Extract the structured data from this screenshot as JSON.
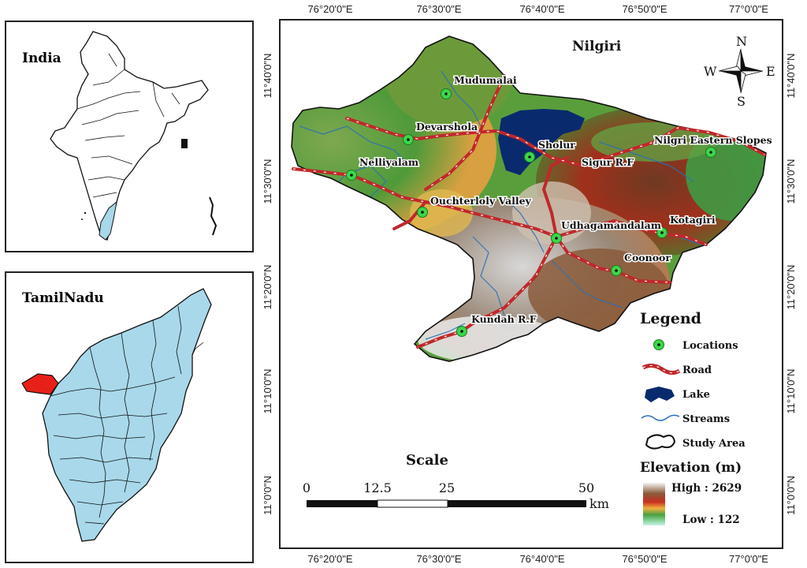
{
  "india_panel": {
    "title": "India"
  },
  "tamilnadu_panel": {
    "title": "TamilNadu"
  },
  "map": {
    "title": "Nilgiri",
    "top_coords": [
      "76°20'0\"E",
      "76°30'0\"E",
      "76°40'0\"E",
      "76°50'0\"E",
      "77°0'0\"E"
    ],
    "bottom_coords": [
      "76°20'0\"E",
      "76°30'0\"E",
      "76°40'0\"E",
      "76°50'0\"E",
      "77°0'0\"E"
    ],
    "left_coords": [
      "11°40'0\"N",
      "11°30'0\"N",
      "11°20'0\"N",
      "11°10'0\"N",
      "11°0'0\"N"
    ],
    "right_coords": [
      "11°40'0\"N",
      "11°30'0\"N",
      "11°20'0\"N",
      "11°10'0\"N",
      "11°0'0\"N"
    ],
    "locations": [
      "Mudumalai",
      "Devarshola",
      "Nelliyalam",
      "Sholur",
      "Sigur R.F",
      "Nilgri Eastern Slopes",
      "Ouchterloly Valley",
      "Udhagamandalam",
      "Kotagiri",
      "Coonoor",
      "Kundah R.F"
    ],
    "compass": {
      "n": "N",
      "s": "S",
      "e": "E",
      "w": "W"
    }
  },
  "legend": {
    "title": "Legend",
    "items": [
      "Locations",
      "Road",
      "Lake",
      "Streams",
      "Study Area"
    ]
  },
  "elevation": {
    "title": "Elevation (m)",
    "high": "High : 2629",
    "low": "Low : 122"
  },
  "scale": {
    "title": "Scale",
    "ticks": [
      "0",
      "12.5",
      "25",
      "50"
    ],
    "unit": "km"
  },
  "colors": {
    "tamilnadu_fill": "#a8d8ea",
    "study_district": "#e8201a",
    "lake": "#0a2a6e",
    "road": "#c0282a",
    "location": "#3cd64a",
    "stream": "#2a6fb8"
  }
}
